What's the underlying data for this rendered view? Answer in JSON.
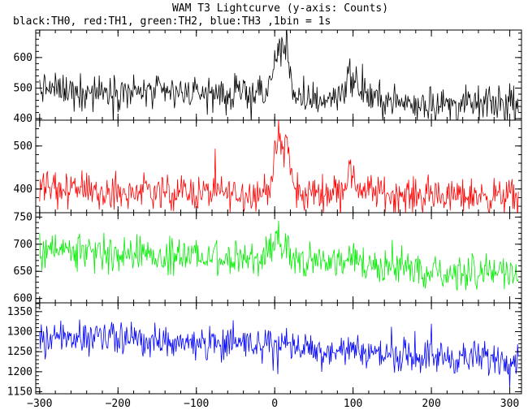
{
  "header": {
    "title": "WAM T3 Lightcurve (y-axis: Counts)",
    "subtitle": "black:TH0, red:TH1, green:TH2, blue:TH3 ,1bin = 1s"
  },
  "chart_data": {
    "type": "line",
    "title": "WAM T3 Lightcurve (y-axis: Counts)",
    "subtitle": "black:TH0, red:TH1, green:TH2, blue:TH3 ,1bin = 1s",
    "xlim": [
      -305,
      315
    ],
    "x_ticks": [
      -300,
      -200,
      -100,
      0,
      100,
      200,
      300
    ],
    "x_tick_labels": [
      "−300",
      "−200",
      "−100",
      "0",
      "100",
      "200",
      "300"
    ],
    "grid": false,
    "panels": [
      {
        "name": "TH0",
        "color": "#000000",
        "ylim": [
          395,
          690
        ],
        "y_ticks": [
          400,
          500,
          600
        ],
        "y_tick_labels": [
          "400",
          "500",
          "600"
        ],
        "series": {
          "x": [
            -300,
            -275,
            -250,
            -225,
            -200,
            -175,
            -150,
            -125,
            -100,
            -75,
            -50,
            -25,
            -10,
            -5,
            0,
            5,
            10,
            15,
            20,
            25,
            30,
            40,
            50,
            60,
            75,
            90,
            95,
            100,
            110,
            125,
            150,
            175,
            200,
            225,
            250,
            275,
            300,
            310
          ],
          "y": [
            500,
            495,
            492,
            488,
            490,
            487,
            485,
            486,
            484,
            480,
            478,
            478,
            485,
            520,
            580,
            640,
            610,
            650,
            560,
            470,
            450,
            455,
            470,
            460,
            470,
            500,
            560,
            520,
            490,
            470,
            455,
            450,
            450,
            445,
            448,
            447,
            445,
            445
          ]
        }
      },
      {
        "name": "TH1",
        "color": "#ff0000",
        "ylim": [
          345,
          560
        ],
        "y_ticks": [
          400,
          500
        ],
        "y_tick_labels": [
          "400",
          "500"
        ],
        "series": {
          "x": [
            -300,
            -275,
            -250,
            -225,
            -200,
            -175,
            -150,
            -125,
            -100,
            -75,
            -50,
            -25,
            -10,
            -5,
            0,
            5,
            10,
            15,
            20,
            25,
            30,
            40,
            50,
            60,
            75,
            90,
            95,
            100,
            110,
            125,
            150,
            175,
            200,
            225,
            250,
            275,
            300,
            310
          ],
          "y": [
            405,
            400,
            398,
            396,
            395,
            394,
            393,
            393,
            392,
            391,
            390,
            390,
            395,
            425,
            465,
            520,
            480,
            525,
            450,
            395,
            385,
            385,
            395,
            390,
            395,
            410,
            445,
            420,
            400,
            395,
            388,
            385,
            385,
            383,
            385,
            384,
            383,
            383
          ]
        }
      },
      {
        "name": "TH2",
        "color": "#00ee00",
        "ylim": [
          592,
          758
        ],
        "y_ticks": [
          600,
          650,
          700,
          750
        ],
        "y_tick_labels": [
          "600",
          "650",
          "700",
          "750"
        ],
        "series": {
          "x": [
            -300,
            -275,
            -250,
            -225,
            -200,
            -175,
            -150,
            -125,
            -100,
            -75,
            -50,
            -25,
            -10,
            -5,
            0,
            5,
            10,
            15,
            20,
            25,
            30,
            40,
            50,
            60,
            75,
            90,
            95,
            100,
            110,
            125,
            150,
            175,
            200,
            225,
            250,
            275,
            300,
            310
          ],
          "y": [
            690,
            688,
            685,
            683,
            682,
            680,
            679,
            678,
            677,
            676,
            675,
            674,
            678,
            695,
            710,
            715,
            700,
            712,
            695,
            675,
            670,
            668,
            668,
            667,
            666,
            670,
            685,
            675,
            665,
            662,
            658,
            655,
            652,
            650,
            648,
            647,
            646,
            645
          ]
        }
      },
      {
        "name": "TH3",
        "color": "#0000ff",
        "ylim": [
          1145,
          1372
        ],
        "y_ticks": [
          1150,
          1200,
          1250,
          1300,
          1350
        ],
        "y_tick_labels": [
          "1150",
          "1200",
          "1250",
          "1300",
          "1350"
        ],
        "series": {
          "x": [
            -300,
            -275,
            -250,
            -225,
            -200,
            -175,
            -150,
            -125,
            -100,
            -75,
            -50,
            -25,
            -10,
            -5,
            0,
            5,
            10,
            15,
            20,
            25,
            30,
            40,
            50,
            60,
            75,
            90,
            95,
            100,
            110,
            125,
            150,
            175,
            200,
            225,
            250,
            275,
            300,
            310
          ],
          "y": [
            1285,
            1283,
            1281,
            1280,
            1278,
            1277,
            1276,
            1275,
            1273,
            1272,
            1270,
            1268,
            1270,
            1272,
            1275,
            1276,
            1272,
            1275,
            1268,
            1262,
            1260,
            1258,
            1257,
            1255,
            1253,
            1252,
            1258,
            1254,
            1248,
            1246,
            1243,
            1240,
            1238,
            1236,
            1234,
            1233,
            1232,
            1230
          ]
        }
      }
    ]
  }
}
